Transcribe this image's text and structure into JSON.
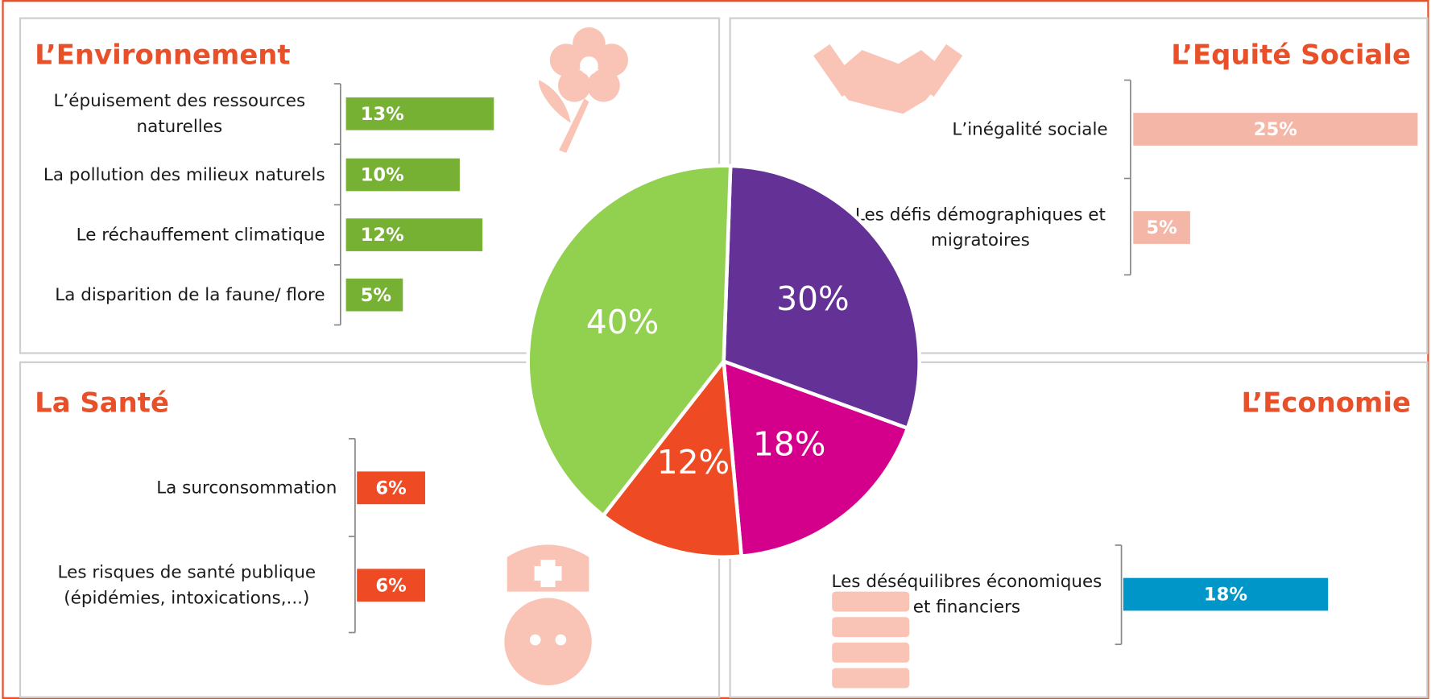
{
  "chart_data": [
    {
      "type": "pie",
      "values": [
        30,
        18,
        12,
        40
      ],
      "value_labels": [
        "30%",
        "18%",
        "12%",
        "40%"
      ],
      "colors": [
        "#643296",
        "#d4008c",
        "#ee4a23",
        "#92d050"
      ]
    },
    {
      "type": "bar",
      "title": "L’Environnement",
      "categories": [
        "L’épuisement des ressources naturelles",
        "La pollution des milieux naturels",
        "Le réchauffement climatique",
        "La disparition de la faune/ flore"
      ],
      "values": [
        13,
        10,
        12,
        5
      ],
      "value_labels": [
        "13%",
        "10%",
        "12%",
        "5%"
      ],
      "color": "#77b133"
    },
    {
      "type": "bar",
      "title": "L’Equité Sociale",
      "categories": [
        "L’inégalité sociale",
        "Les défis démographiques et migratoires"
      ],
      "values": [
        25,
        5
      ],
      "value_labels": [
        "25%",
        "5%"
      ],
      "color": "#f4b6a6"
    },
    {
      "type": "bar",
      "title": "La Santé",
      "categories": [
        "La surconsommation",
        "Les risques de santé publique (épidémies, intoxications,...)"
      ],
      "values": [
        6,
        6
      ],
      "value_labels": [
        "6%",
        "6%"
      ],
      "color": "#ee4a23"
    },
    {
      "type": "bar",
      "title": "L’Economie",
      "categories": [
        "Les déséquilibres économiques et financiers"
      ],
      "values": [
        18
      ],
      "value_labels": [
        "18%"
      ],
      "color": "#0096c8"
    }
  ]
}
